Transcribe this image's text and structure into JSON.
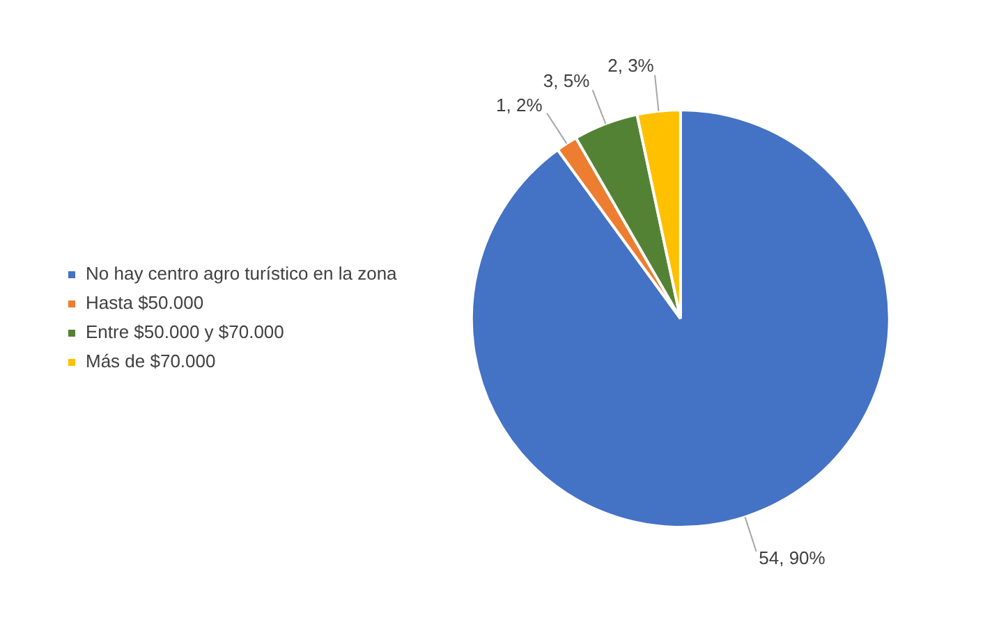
{
  "chart_data": {
    "type": "pie",
    "categories": [
      "No hay centro agro turístico en la zona",
      "Hasta $50.000",
      "Entre $50.000 y $70.000",
      "Más de $70.000"
    ],
    "values": [
      54,
      1,
      3,
      2
    ],
    "colors": [
      "#4472c4",
      "#ed7d31",
      "#548235",
      "#ffc000"
    ],
    "value_labels": [
      "54, 90%",
      "1, 2%",
      "3, 5%",
      "2, 3%"
    ],
    "legend": "left"
  }
}
